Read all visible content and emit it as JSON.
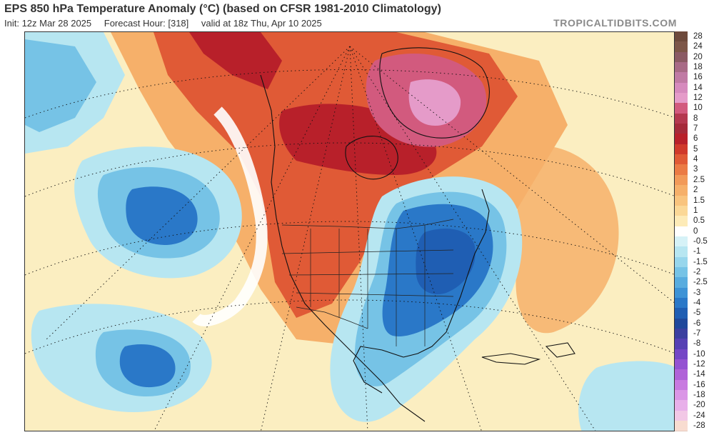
{
  "header": {
    "title": "EPS 850 hPa Temperature Anomaly (°C) (based on CFSR 1981-2010 Climatology)",
    "init": "Init: 12z Mar 28 2025",
    "forecast": "Forecast Hour: [318]",
    "valid": "valid at 18z Thu, Apr 10 2025",
    "brand": "TROPICALTIDBITS.COM"
  },
  "colorbar": {
    "entries": [
      {
        "label": "28",
        "color": "#6e4a3c"
      },
      {
        "label": "24",
        "color": "#7d5648"
      },
      {
        "label": "20",
        "color": "#8b5a64"
      },
      {
        "label": "18",
        "color": "#a86a86"
      },
      {
        "label": "16",
        "color": "#c07aa4"
      },
      {
        "label": "14",
        "color": "#d68abd"
      },
      {
        "label": "12",
        "color": "#e59bc9"
      },
      {
        "label": "10",
        "color": "#d25a7e"
      },
      {
        "label": "8",
        "color": "#b4384f"
      },
      {
        "label": "7",
        "color": "#a52a3a"
      },
      {
        "label": "6",
        "color": "#b8202a"
      },
      {
        "label": "5",
        "color": "#d0392b"
      },
      {
        "label": "4",
        "color": "#e05a36"
      },
      {
        "label": "3",
        "color": "#eb7b45"
      },
      {
        "label": "2.5",
        "color": "#f29a59"
      },
      {
        "label": "2",
        "color": "#f6b06a"
      },
      {
        "label": "1.5",
        "color": "#f9c47e"
      },
      {
        "label": "1",
        "color": "#fbd897"
      },
      {
        "label": "0.5",
        "color": "#fdebb8"
      },
      {
        "label": "0",
        "color": "#ffffff"
      },
      {
        "label": "-0.5",
        "color": "#d6f2f7"
      },
      {
        "label": "-1",
        "color": "#b7e6f1"
      },
      {
        "label": "-1.5",
        "color": "#97d6ec"
      },
      {
        "label": "-2",
        "color": "#76c3e6"
      },
      {
        "label": "-2.5",
        "color": "#58acdf"
      },
      {
        "label": "-3",
        "color": "#3e93d6"
      },
      {
        "label": "-4",
        "color": "#2a78c8"
      },
      {
        "label": "-5",
        "color": "#1f5eb3"
      },
      {
        "label": "-6",
        "color": "#1f489b"
      },
      {
        "label": "-7",
        "color": "#3b3fa0"
      },
      {
        "label": "-8",
        "color": "#5640b4"
      },
      {
        "label": "-10",
        "color": "#7446c6"
      },
      {
        "label": "-12",
        "color": "#9452d2"
      },
      {
        "label": "-14",
        "color": "#b062d8"
      },
      {
        "label": "-16",
        "color": "#c87ae0"
      },
      {
        "label": "-18",
        "color": "#da96e6"
      },
      {
        "label": "-20",
        "color": "#e8b0ea"
      },
      {
        "label": "-24",
        "color": "#f2c8e6"
      },
      {
        "label": "-28",
        "color": "#f8dcd0"
      }
    ]
  },
  "map": {
    "region": "North America and adjacent Pacific/Atlantic",
    "projection_graticule": "dotted",
    "colors": {
      "background_warm": "#fbeec1",
      "warm_light": "#f6b06a",
      "warm": "#e05a36",
      "warm_strong": "#b8202a",
      "warm_peak": "#d25a7e",
      "warm_peak_core": "#e59bc9",
      "cold_light": "#b7e6f1",
      "cold": "#76c3e6",
      "cold_strong": "#2a78c8",
      "cold_core": "#1f5eb3",
      "near_zero": "#ffffff",
      "coastline": "#111111"
    }
  }
}
